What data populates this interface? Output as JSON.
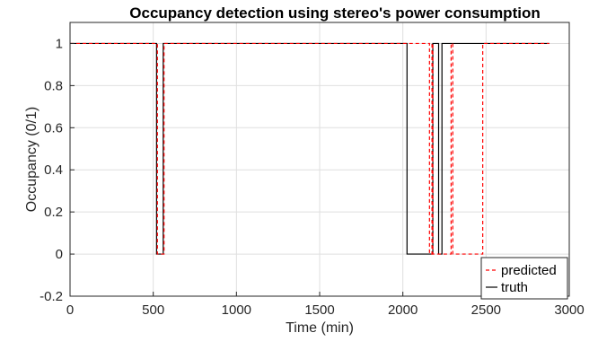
{
  "chart_data": {
    "type": "line",
    "title": "Occupancy detection using stereo's power consumption",
    "xlabel": "Time (min)",
    "ylabel": "Occupancy (0/1)",
    "xlim": [
      0,
      3000
    ],
    "ylim": [
      -0.2,
      1.1
    ],
    "xticks": [
      0,
      500,
      1000,
      1500,
      2000,
      2500,
      3000
    ],
    "yticks": [
      -0.2,
      0,
      0.2,
      0.4,
      0.6,
      0.8,
      1
    ],
    "xtick_labels": [
      "0",
      "500",
      "1000",
      "1500",
      "2000",
      "2500",
      "3000"
    ],
    "ytick_labels": [
      "-0.2",
      "0",
      "0.2",
      "0.4",
      "0.6",
      "0.8",
      "1"
    ],
    "grid": true,
    "legend_position": "bottom-right",
    "series": [
      {
        "name": "predicted",
        "style": "dashed",
        "color": "#ff0000",
        "x": [
          0,
          525,
          525,
          565,
          565,
          2160,
          2160,
          2175,
          2175,
          2180,
          2180,
          2290,
          2290,
          2300,
          2300,
          2480,
          2480,
          2490,
          2490,
          2880
        ],
        "y": [
          1,
          1,
          0,
          0,
          1,
          1,
          0,
          0,
          1,
          1,
          0,
          0,
          1,
          1,
          0,
          0,
          1,
          1,
          1,
          1
        ]
      },
      {
        "name": "truth",
        "style": "solid",
        "color": "#000000",
        "x": [
          0,
          520,
          520,
          560,
          560,
          2025,
          2025,
          2180,
          2180,
          2215,
          2215,
          2235,
          2235,
          2880
        ],
        "y": [
          1,
          1,
          0,
          0,
          1,
          1,
          0,
          0,
          1,
          1,
          0,
          0,
          1,
          1
        ]
      }
    ]
  }
}
